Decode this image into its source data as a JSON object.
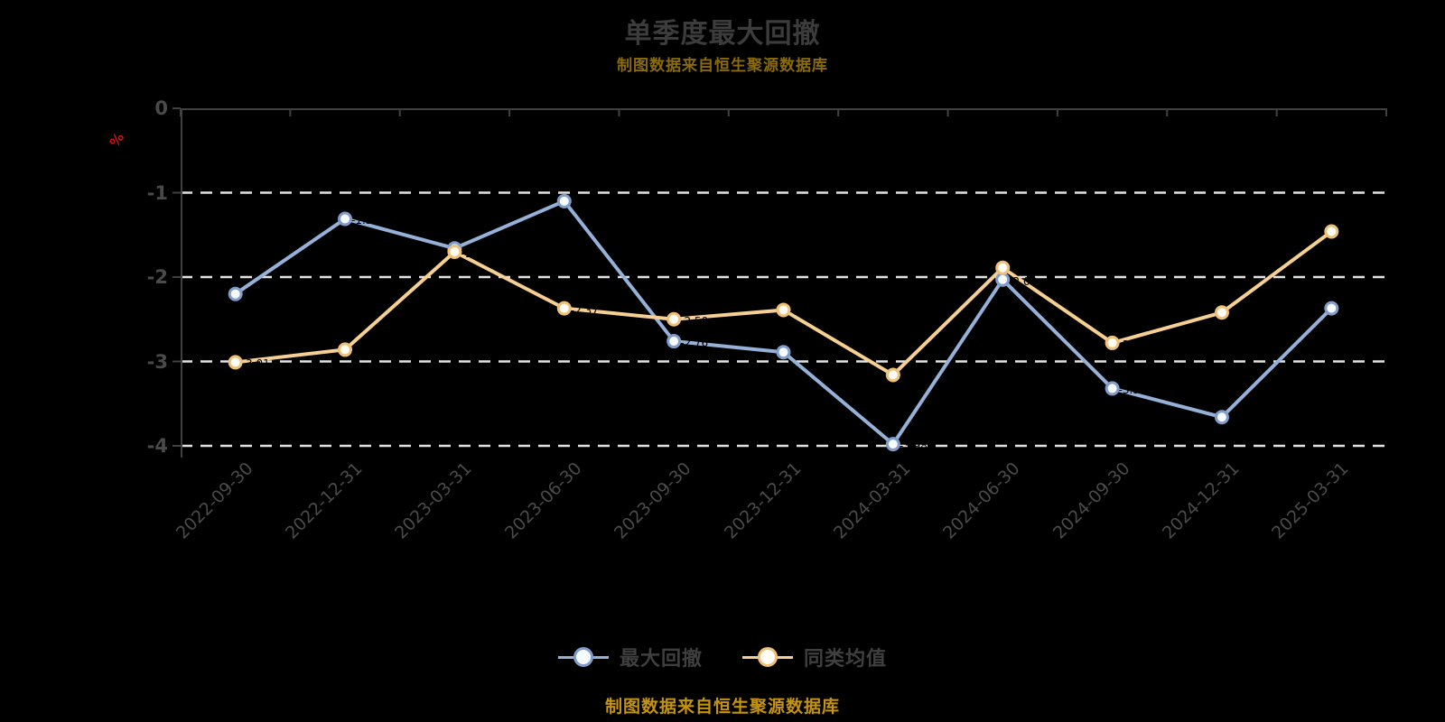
{
  "title": "单季度最大回撤",
  "subtitle": "制图数据来自恒生聚源数据库",
  "footer": "制图数据来自恒生聚源数据库",
  "colors": {
    "background": "#000000",
    "title_text": "#3c3c3c",
    "axis_line": "#414141",
    "tick_label": "#4a4a4a",
    "gridline": "#e2e2e2",
    "y_axis_name": "#cc1212",
    "subtitle_gold": "#8a6a0a",
    "footer_gold": "#c4930f",
    "point_label": "#000000"
  },
  "y_axis": {
    "name": "%",
    "ticks": [
      "0",
      "-1",
      "-2",
      "-3",
      "-4"
    ]
  },
  "chart_data": {
    "type": "line",
    "title": "单季度最大回撤",
    "xlabel": "",
    "ylabel": "%",
    "ylim": [
      -4,
      0
    ],
    "grid": "horizontal-dashed",
    "grid_values": [
      -1,
      -2,
      -3,
      -4
    ],
    "legend_position": "bottom",
    "categories": [
      "2022-09-30",
      "2022-12-31",
      "2023-03-31",
      "2023-06-30",
      "2023-09-30",
      "2023-12-31",
      "2024-03-31",
      "2024-06-30",
      "2024-09-30",
      "2024-12-31",
      "2025-03-31"
    ],
    "series": [
      {
        "name": "最大回撤",
        "line_color": "#96b1d8",
        "marker_border": "#7f9cca",
        "marker_fill": "#f7faff",
        "values": [
          -2.2,
          -1.31,
          -1.66,
          -1.1,
          -2.76,
          -2.89,
          -3.98,
          -2.03,
          -3.32,
          -3.66,
          -2.37
        ]
      },
      {
        "name": "同类均值",
        "line_color": "#f6cf92",
        "marker_border": "#eec079",
        "marker_fill": "#fffdf4",
        "values": [
          -3.01,
          -2.86,
          -1.7,
          -2.37,
          -2.5,
          -2.39,
          -3.16,
          -1.89,
          -2.78,
          -2.42,
          -1.46
        ]
      }
    ]
  }
}
